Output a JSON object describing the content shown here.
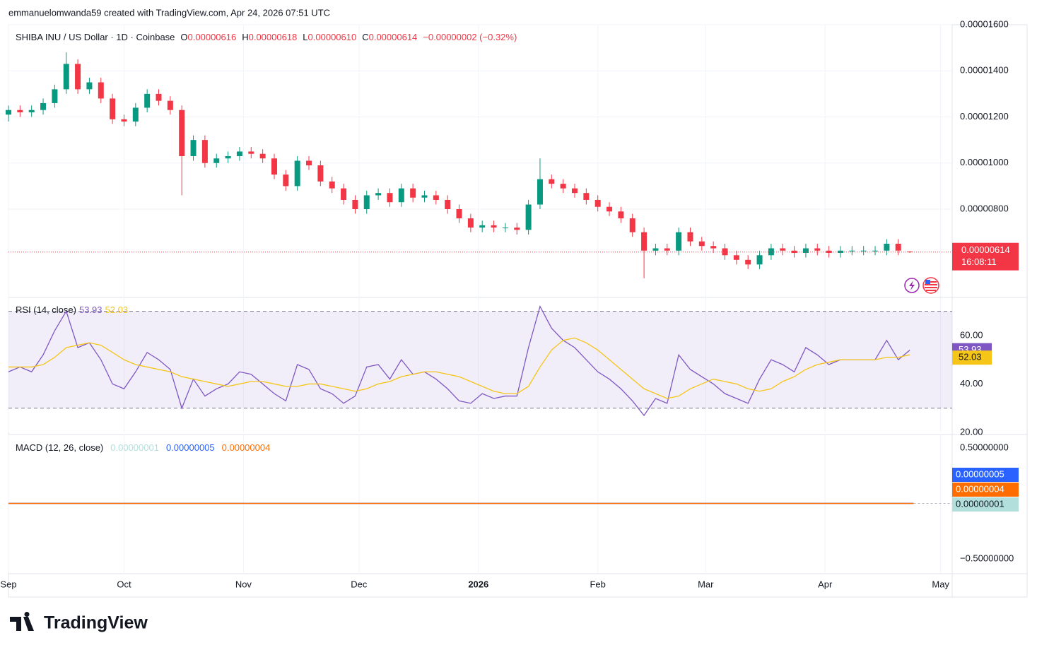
{
  "attribution": "emmanuelomwanda59 created with TradingView.com, Apr 24, 2026 07:51 UTC",
  "logo": "TradingView",
  "chart_data": [
    {
      "type": "candlestick",
      "title": "SHIBA INU / US Dollar · 1D · Coinbase",
      "ohlc_legend": [
        {
          "label": "O",
          "value": 6.16e-06
        },
        {
          "label": "H",
          "value": 6.18e-06
        },
        {
          "label": "L",
          "value": 6.1e-06,
          "value_label": "0.00000610"
        },
        {
          "label": "C",
          "value": 6.14e-06
        }
      ],
      "change": "−0.00000002 (−0.32%)",
      "countdown": "16:08:11",
      "up_color": "#089981",
      "down_color": "#f23645",
      "grid": true,
      "x": [
        0,
        3,
        6,
        9,
        12,
        15,
        18,
        21,
        24,
        27,
        30,
        33,
        36,
        39,
        42,
        45,
        48,
        51,
        54,
        57,
        60,
        63,
        66,
        69,
        72,
        75,
        78,
        81,
        84,
        87,
        90,
        93,
        96,
        99,
        102,
        105,
        108,
        111,
        114,
        117,
        120,
        123,
        126,
        129,
        132,
        135,
        138,
        141,
        144,
        147,
        150,
        153,
        156,
        159,
        162,
        165,
        168,
        171,
        174,
        177,
        180,
        183,
        186,
        189,
        192,
        195,
        198,
        201,
        204,
        207,
        210,
        213,
        216,
        219,
        222,
        225,
        228,
        231,
        234
      ],
      "open": [
        1.21e-05,
        1.23e-05,
        1.22e-05,
        1.23e-05,
        1.26e-05,
        1.32e-05,
        1.43e-05,
        1.32e-05,
        1.35e-05,
        1.28e-05,
        1.19e-05,
        1.18e-05,
        1.24e-05,
        1.3e-05,
        1.27e-05,
        1.23e-05,
        1.03e-05,
        1.1e-05,
        1e-05,
        1.02e-05,
        1.03e-05,
        1.05e-05,
        1.04e-05,
        1.02e-05,
        9.5e-06,
        9e-06,
        1.01e-05,
        9.9e-06,
        9.2e-06,
        8.9e-06,
        8.4e-06,
        8e-06,
        8.6e-06,
        8.7e-06,
        8.3e-06,
        8.9e-06,
        8.5e-06,
        8.6e-06,
        8.4e-06,
        8e-06,
        7.6e-06,
        7.2e-06,
        7.3e-06,
        7.2e-06,
        7.2e-06,
        7.1e-06,
        8.2e-06,
        9.3e-06,
        9.1e-06,
        8.9e-06,
        8.7e-06,
        8.4e-06,
        8.1e-06,
        7.9e-06,
        7.6e-06,
        7e-06,
        6.2e-06,
        6.3e-06,
        6.2e-06,
        7e-06,
        6.6e-06,
        6.4e-06,
        6.3e-06,
        6e-06,
        5.8e-06,
        5.6e-06,
        6e-06,
        6.3e-06,
        6.2e-06,
        6.1e-06,
        6.3e-06,
        6.2e-06,
        6.1e-06,
        6.2e-06,
        6.2e-06,
        6.2e-06,
        6.2e-06,
        6.5e-06,
        6.16e-06
      ],
      "high": [
        1.25e-05,
        1.25e-05,
        1.25e-05,
        1.28e-05,
        1.34e-05,
        1.48e-05,
        1.45e-05,
        1.37e-05,
        1.37e-05,
        1.3e-05,
        1.21e-05,
        1.26e-05,
        1.32e-05,
        1.32e-05,
        1.29e-05,
        1.25e-05,
        1.12e-05,
        1.12e-05,
        1.04e-05,
        1.05e-05,
        1.07e-05,
        1.07e-05,
        1.06e-05,
        1.04e-05,
        9.7e-06,
        1.03e-05,
        1.03e-05,
        1.01e-05,
        9.4e-06,
        9.1e-06,
        8.6e-06,
        8.8e-06,
        8.9e-06,
        8.9e-06,
        9.1e-06,
        9.1e-06,
        8.8e-06,
        8.8e-06,
        8.6e-06,
        8.2e-06,
        7.8e-06,
        7.5e-06,
        7.5e-06,
        7.4e-06,
        7.4e-06,
        8.4e-06,
        1.02e-05,
        9.5e-06,
        9.3e-06,
        9.1e-06,
        8.9e-06,
        8.6e-06,
        8.3e-06,
        8.1e-06,
        7.8e-06,
        7.2e-06,
        6.5e-06,
        6.5e-06,
        7.2e-06,
        7.2e-06,
        6.8e-06,
        6.6e-06,
        6.5e-06,
        6.2e-06,
        6e-06,
        6.2e-06,
        6.5e-06,
        6.5e-06,
        6.4e-06,
        6.5e-06,
        6.5e-06,
        6.4e-06,
        6.4e-06,
        6.4e-06,
        6.4e-06,
        6.4e-06,
        6.7e-06,
        6.7e-06,
        6.18e-06
      ],
      "low": [
        1.18e-05,
        1.2e-05,
        1.2e-05,
        1.21e-05,
        1.24e-05,
        1.3e-05,
        1.3e-05,
        1.3e-05,
        1.26e-05,
        1.17e-05,
        1.16e-05,
        1.16e-05,
        1.22e-05,
        1.25e-05,
        1.21e-05,
        8.6e-06,
        1.01e-05,
        9.8e-06,
        9.8e-06,
        1e-05,
        1.01e-05,
        1.02e-05,
        1e-05,
        9.3e-06,
        8.8e-06,
        8.8e-06,
        9.7e-06,
        9e-06,
        8.7e-06,
        8.2e-06,
        7.8e-06,
        7.8e-06,
        8.4e-06,
        8.1e-06,
        8.1e-06,
        8.3e-06,
        8.3e-06,
        8.2e-06,
        7.8e-06,
        7.4e-06,
        7e-06,
        7e-06,
        7e-06,
        7e-06,
        6.9e-06,
        6.9e-06,
        8e-06,
        8.9e-06,
        8.7e-06,
        8.5e-06,
        8.2e-06,
        7.9e-06,
        7.7e-06,
        7.4e-06,
        6.8e-06,
        5e-06,
        6e-06,
        6e-06,
        6e-06,
        6.4e-06,
        6.2e-06,
        6.1e-06,
        5.8e-06,
        5.6e-06,
        5.4e-06,
        5.4e-06,
        5.8e-06,
        6e-06,
        5.9e-06,
        5.9e-06,
        6e-06,
        5.9e-06,
        5.9e-06,
        6e-06,
        6e-06,
        6e-06,
        6e-06,
        6e-06,
        6.1e-06
      ],
      "close": [
        1.23e-05,
        1.22e-05,
        1.23e-05,
        1.26e-05,
        1.32e-05,
        1.43e-05,
        1.32e-05,
        1.35e-05,
        1.28e-05,
        1.19e-05,
        1.18e-05,
        1.24e-05,
        1.3e-05,
        1.27e-05,
        1.23e-05,
        1.03e-05,
        1.1e-05,
        1e-05,
        1.02e-05,
        1.03e-05,
        1.05e-05,
        1.04e-05,
        1.02e-05,
        9.5e-06,
        9e-06,
        1.01e-05,
        9.9e-06,
        9.2e-06,
        8.9e-06,
        8.4e-06,
        8e-06,
        8.6e-06,
        8.7e-06,
        8.3e-06,
        8.9e-06,
        8.5e-06,
        8.6e-06,
        8.4e-06,
        8e-06,
        7.6e-06,
        7.2e-06,
        7.3e-06,
        7.2e-06,
        7.2e-06,
        7.1e-06,
        8.2e-06,
        9.3e-06,
        9.1e-06,
        8.9e-06,
        8.7e-06,
        8.4e-06,
        8.1e-06,
        7.9e-06,
        7.6e-06,
        7e-06,
        6.2e-06,
        6.3e-06,
        6.2e-06,
        7e-06,
        6.6e-06,
        6.4e-06,
        6.3e-06,
        6e-06,
        5.8e-06,
        5.6e-06,
        6e-06,
        6.3e-06,
        6.2e-06,
        6.1e-06,
        6.3e-06,
        6.2e-06,
        6.1e-06,
        6.2e-06,
        6.2e-06,
        6.2e-06,
        6.2e-06,
        6.5e-06,
        6.2e-06,
        6.14e-06
      ],
      "xlim": [
        0,
        245
      ],
      "xticks": [
        {
          "value": 0,
          "label": "Sep"
        },
        {
          "value": 30,
          "label": "Oct"
        },
        {
          "value": 61,
          "label": "Nov"
        },
        {
          "value": 91,
          "label": "Dec"
        },
        {
          "value": 122,
          "label": "2026"
        },
        {
          "value": 153,
          "label": "Feb"
        },
        {
          "value": 181,
          "label": "Mar"
        },
        {
          "value": 212,
          "label": "Apr"
        },
        {
          "value": 242,
          "label": "May"
        }
      ],
      "ylim": [
        4.2e-06,
        1.6e-05
      ],
      "yticks": [
        {
          "value": 8e-06,
          "label": "0.00000800"
        },
        {
          "value": 1e-05,
          "label": "0.00001000"
        },
        {
          "value": 1.2e-05,
          "label": "0.00001200"
        },
        {
          "value": 1.4e-05,
          "label": "0.00001400"
        },
        {
          "value": 1.6e-05,
          "label": "0.00001600"
        }
      ]
    },
    {
      "type": "line",
      "title": "RSI (14, close)",
      "x": [
        0,
        3,
        6,
        9,
        12,
        15,
        18,
        21,
        24,
        27,
        30,
        33,
        36,
        39,
        42,
        45,
        48,
        51,
        54,
        57,
        60,
        63,
        66,
        69,
        72,
        75,
        78,
        81,
        84,
        87,
        90,
        93,
        96,
        99,
        102,
        105,
        108,
        111,
        114,
        117,
        120,
        123,
        126,
        129,
        132,
        135,
        138,
        141,
        144,
        147,
        150,
        153,
        156,
        159,
        162,
        165,
        168,
        171,
        174,
        177,
        180,
        183,
        186,
        189,
        192,
        195,
        198,
        201,
        204,
        207,
        210,
        213,
        216,
        219,
        222,
        225,
        228,
        231,
        234
      ],
      "series": [
        {
          "color": "#7e57c2",
          "values": [
            45,
            47,
            45,
            52,
            62,
            70,
            55,
            57,
            50,
            40,
            38,
            45,
            53,
            50,
            46,
            30,
            42,
            35,
            38,
            40,
            45,
            44,
            40,
            36,
            33,
            48,
            46,
            38,
            36,
            32,
            35,
            47,
            48,
            42,
            50,
            44,
            45,
            42,
            38,
            33,
            32,
            36,
            34,
            35,
            35,
            55,
            72,
            63,
            58,
            55,
            50,
            45,
            42,
            38,
            33,
            27,
            34,
            32,
            52,
            46,
            43,
            40,
            36,
            34,
            32,
            42,
            50,
            48,
            45,
            55,
            52,
            48,
            50,
            50,
            50,
            50,
            58,
            50,
            53.93
          ]
        },
        {
          "color": "#f5c518",
          "values": [
            47,
            47,
            47,
            48,
            51,
            55,
            56,
            57,
            56,
            53,
            50,
            48,
            47,
            46,
            45,
            43,
            42,
            41,
            40,
            39,
            40,
            41,
            41,
            40,
            39,
            39,
            40,
            40,
            39,
            38,
            37,
            38,
            40,
            41,
            43,
            44,
            45,
            45,
            44,
            43,
            41,
            39,
            37,
            36,
            36,
            39,
            47,
            54,
            58,
            59,
            57,
            54,
            50,
            46,
            42,
            38,
            36,
            34,
            35,
            38,
            40,
            42,
            41,
            40,
            38,
            37,
            38,
            41,
            43,
            46,
            48,
            49,
            50,
            50,
            50,
            50,
            51,
            51,
            52.03
          ]
        }
      ],
      "hlines": [
        30,
        70
      ],
      "xlim": [
        0,
        245
      ],
      "ylim": [
        20,
        76
      ],
      "yticks": [
        {
          "value": 20,
          "label": "20.00"
        },
        {
          "value": 40,
          "label": "40.00"
        },
        {
          "value": 60,
          "label": "60.00"
        }
      ]
    },
    {
      "type": "line",
      "title": "MACD (12, 26, close)",
      "series": [
        {
          "color": "#b2dfdb",
          "value": 1e-08,
          "value_label": "0.00000001"
        },
        {
          "color": "#2962ff",
          "value": 5e-08,
          "value_label": "0.00000005"
        },
        {
          "color": "#ff6d00",
          "value": 4e-08,
          "value_label": "0.00000004"
        }
      ],
      "xlim": [
        0,
        245
      ],
      "ylim": [
        -0.62,
        0.62
      ],
      "yticks": [
        {
          "value": 0.5,
          "label": "0.50000000"
        },
        {
          "value": -0.5,
          "label": "−0.50000000"
        }
      ]
    }
  ]
}
